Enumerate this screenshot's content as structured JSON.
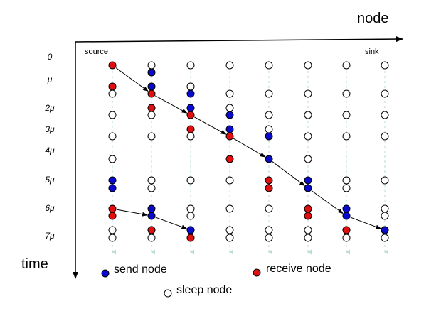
{
  "axis": {
    "node_title": "node",
    "time_title": "time"
  },
  "labels": {
    "source": "source",
    "sink": "sink"
  },
  "time_ticks": [
    "0",
    "μ",
    "2μ",
    "3μ",
    "4μ",
    "5μ",
    "6μ",
    "7μ"
  ],
  "legend": {
    "send": "send node",
    "receive": "receive node",
    "sleep": "sleep node"
  },
  "colors": {
    "send": "#0a0acc",
    "receive": "#e01010",
    "sleep": "#ffffff",
    "outline": "#000000",
    "timeline": "#b9dcd6"
  },
  "columns": 8,
  "nodes": [
    {
      "col": 0,
      "slot": 0,
      "state": "receive"
    },
    {
      "col": 0,
      "slot": 2,
      "state": "receive"
    },
    {
      "col": 0,
      "slot": 3,
      "state": "sleep"
    },
    {
      "col": 0,
      "slot": 5,
      "state": "sleep"
    },
    {
      "col": 0,
      "slot": 7,
      "state": "sleep"
    },
    {
      "col": 0,
      "slot": 9,
      "state": "sleep"
    },
    {
      "col": 0,
      "slot": 10,
      "state": "send"
    },
    {
      "col": 0,
      "slot": 12,
      "state": "send"
    },
    {
      "col": 0,
      "slot": 13,
      "state": "receive"
    },
    {
      "col": 0,
      "slot": 15,
      "state": "receive"
    },
    {
      "col": 0,
      "slot": 16,
      "state": "sleep"
    },
    {
      "col": 0,
      "slot": 18,
      "state": "sleep"
    },
    {
      "col": 1,
      "slot": 0,
      "state": "sleep"
    },
    {
      "col": 1,
      "slot": 1,
      "state": "send"
    },
    {
      "col": 1,
      "slot": 2,
      "state": "send"
    },
    {
      "col": 1,
      "slot": 3,
      "state": "receive"
    },
    {
      "col": 1,
      "slot": 4,
      "state": "receive"
    },
    {
      "col": 1,
      "slot": 5,
      "state": "sleep"
    },
    {
      "col": 1,
      "slot": 7,
      "state": "sleep"
    },
    {
      "col": 1,
      "slot": 10,
      "state": "sleep"
    },
    {
      "col": 1,
      "slot": 12,
      "state": "sleep"
    },
    {
      "col": 1,
      "slot": 13,
      "state": "send"
    },
    {
      "col": 1,
      "slot": 15,
      "state": "send"
    },
    {
      "col": 1,
      "slot": 16,
      "state": "sleep"
    },
    {
      "col": 1,
      "slot": 17,
      "state": "receive"
    },
    {
      "col": 1,
      "slot": 18,
      "state": "sleep"
    },
    {
      "col": 2,
      "slot": 0,
      "state": "sleep"
    },
    {
      "col": 2,
      "slot": 2,
      "state": "sleep"
    },
    {
      "col": 2,
      "slot": 3,
      "state": "send"
    },
    {
      "col": 2,
      "slot": 4,
      "state": "send"
    },
    {
      "col": 2,
      "slot": 5,
      "state": "receive"
    },
    {
      "col": 2,
      "slot": 6,
      "state": "receive"
    },
    {
      "col": 2,
      "slot": 7,
      "state": "sleep"
    },
    {
      "col": 2,
      "slot": 10,
      "state": "sleep"
    },
    {
      "col": 2,
      "slot": 13,
      "state": "sleep"
    },
    {
      "col": 2,
      "slot": 15,
      "state": "sleep"
    },
    {
      "col": 2,
      "slot": 16,
      "state": "send"
    },
    {
      "col": 2,
      "slot": 17,
      "state": "send"
    },
    {
      "col": 2,
      "slot": 18,
      "state": "receive"
    },
    {
      "col": 3,
      "slot": 0,
      "state": "sleep"
    },
    {
      "col": 3,
      "slot": 3,
      "state": "sleep"
    },
    {
      "col": 3,
      "slot": 4,
      "state": "sleep"
    },
    {
      "col": 3,
      "slot": 5,
      "state": "send"
    },
    {
      "col": 3,
      "slot": 6,
      "state": "send"
    },
    {
      "col": 3,
      "slot": 7,
      "state": "receive"
    },
    {
      "col": 3,
      "slot": 9,
      "state": "receive"
    },
    {
      "col": 3,
      "slot": 10,
      "state": "sleep"
    },
    {
      "col": 3,
      "slot": 13,
      "state": "sleep"
    },
    {
      "col": 3,
      "slot": 16,
      "state": "sleep"
    },
    {
      "col": 3,
      "slot": 18,
      "state": "sleep"
    },
    {
      "col": 4,
      "slot": 0,
      "state": "sleep"
    },
    {
      "col": 4,
      "slot": 3,
      "state": "sleep"
    },
    {
      "col": 4,
      "slot": 5,
      "state": "sleep"
    },
    {
      "col": 4,
      "slot": 6,
      "state": "sleep"
    },
    {
      "col": 4,
      "slot": 7,
      "state": "send"
    },
    {
      "col": 4,
      "slot": 9,
      "state": "send"
    },
    {
      "col": 4,
      "slot": 10,
      "state": "receive"
    },
    {
      "col": 4,
      "slot": 12,
      "state": "receive"
    },
    {
      "col": 4,
      "slot": 13,
      "state": "sleep"
    },
    {
      "col": 4,
      "slot": 16,
      "state": "sleep"
    },
    {
      "col": 4,
      "slot": 18,
      "state": "sleep"
    },
    {
      "col": 5,
      "slot": 0,
      "state": "sleep"
    },
    {
      "col": 5,
      "slot": 3,
      "state": "sleep"
    },
    {
      "col": 5,
      "slot": 5,
      "state": "sleep"
    },
    {
      "col": 5,
      "slot": 7,
      "state": "sleep"
    },
    {
      "col": 5,
      "slot": 9,
      "state": "sleep"
    },
    {
      "col": 5,
      "slot": 10,
      "state": "send"
    },
    {
      "col": 5,
      "slot": 12,
      "state": "send"
    },
    {
      "col": 5,
      "slot": 13,
      "state": "receive"
    },
    {
      "col": 5,
      "slot": 15,
      "state": "receive"
    },
    {
      "col": 5,
      "slot": 16,
      "state": "sleep"
    },
    {
      "col": 5,
      "slot": 18,
      "state": "sleep"
    },
    {
      "col": 6,
      "slot": 0,
      "state": "sleep"
    },
    {
      "col": 6,
      "slot": 3,
      "state": "sleep"
    },
    {
      "col": 6,
      "slot": 5,
      "state": "sleep"
    },
    {
      "col": 6,
      "slot": 7,
      "state": "sleep"
    },
    {
      "col": 6,
      "slot": 10,
      "state": "sleep"
    },
    {
      "col": 6,
      "slot": 12,
      "state": "sleep"
    },
    {
      "col": 6,
      "slot": 13,
      "state": "send"
    },
    {
      "col": 6,
      "slot": 15,
      "state": "send"
    },
    {
      "col": 6,
      "slot": 16,
      "state": "receive"
    },
    {
      "col": 6,
      "slot": 17,
      "state": "receive"
    },
    {
      "col": 6,
      "slot": 18,
      "state": "sleep"
    },
    {
      "col": 7,
      "slot": 0,
      "state": "sleep"
    },
    {
      "col": 7,
      "slot": 3,
      "state": "sleep"
    },
    {
      "col": 7,
      "slot": 5,
      "state": "sleep"
    },
    {
      "col": 7,
      "slot": 7,
      "state": "sleep"
    },
    {
      "col": 7,
      "slot": 10,
      "state": "sleep"
    },
    {
      "col": 7,
      "slot": 13,
      "state": "sleep"
    },
    {
      "col": 7,
      "slot": 15,
      "state": "sleep"
    },
    {
      "col": 7,
      "slot": 16,
      "state": "send"
    },
    {
      "col": 7,
      "slot": 17,
      "state": "send"
    },
    {
      "col": 7,
      "slot": 18,
      "state": "sleep"
    }
  ],
  "paths": [
    [
      [
        0,
        0
      ],
      [
        1,
        3
      ],
      [
        2,
        5
      ],
      [
        3,
        7
      ],
      [
        4,
        9
      ],
      [
        5,
        12
      ],
      [
        6,
        15
      ],
      [
        7,
        17
      ]
    ],
    [
      [
        0,
        13
      ],
      [
        1,
        15
      ],
      [
        2,
        17
      ]
    ]
  ]
}
